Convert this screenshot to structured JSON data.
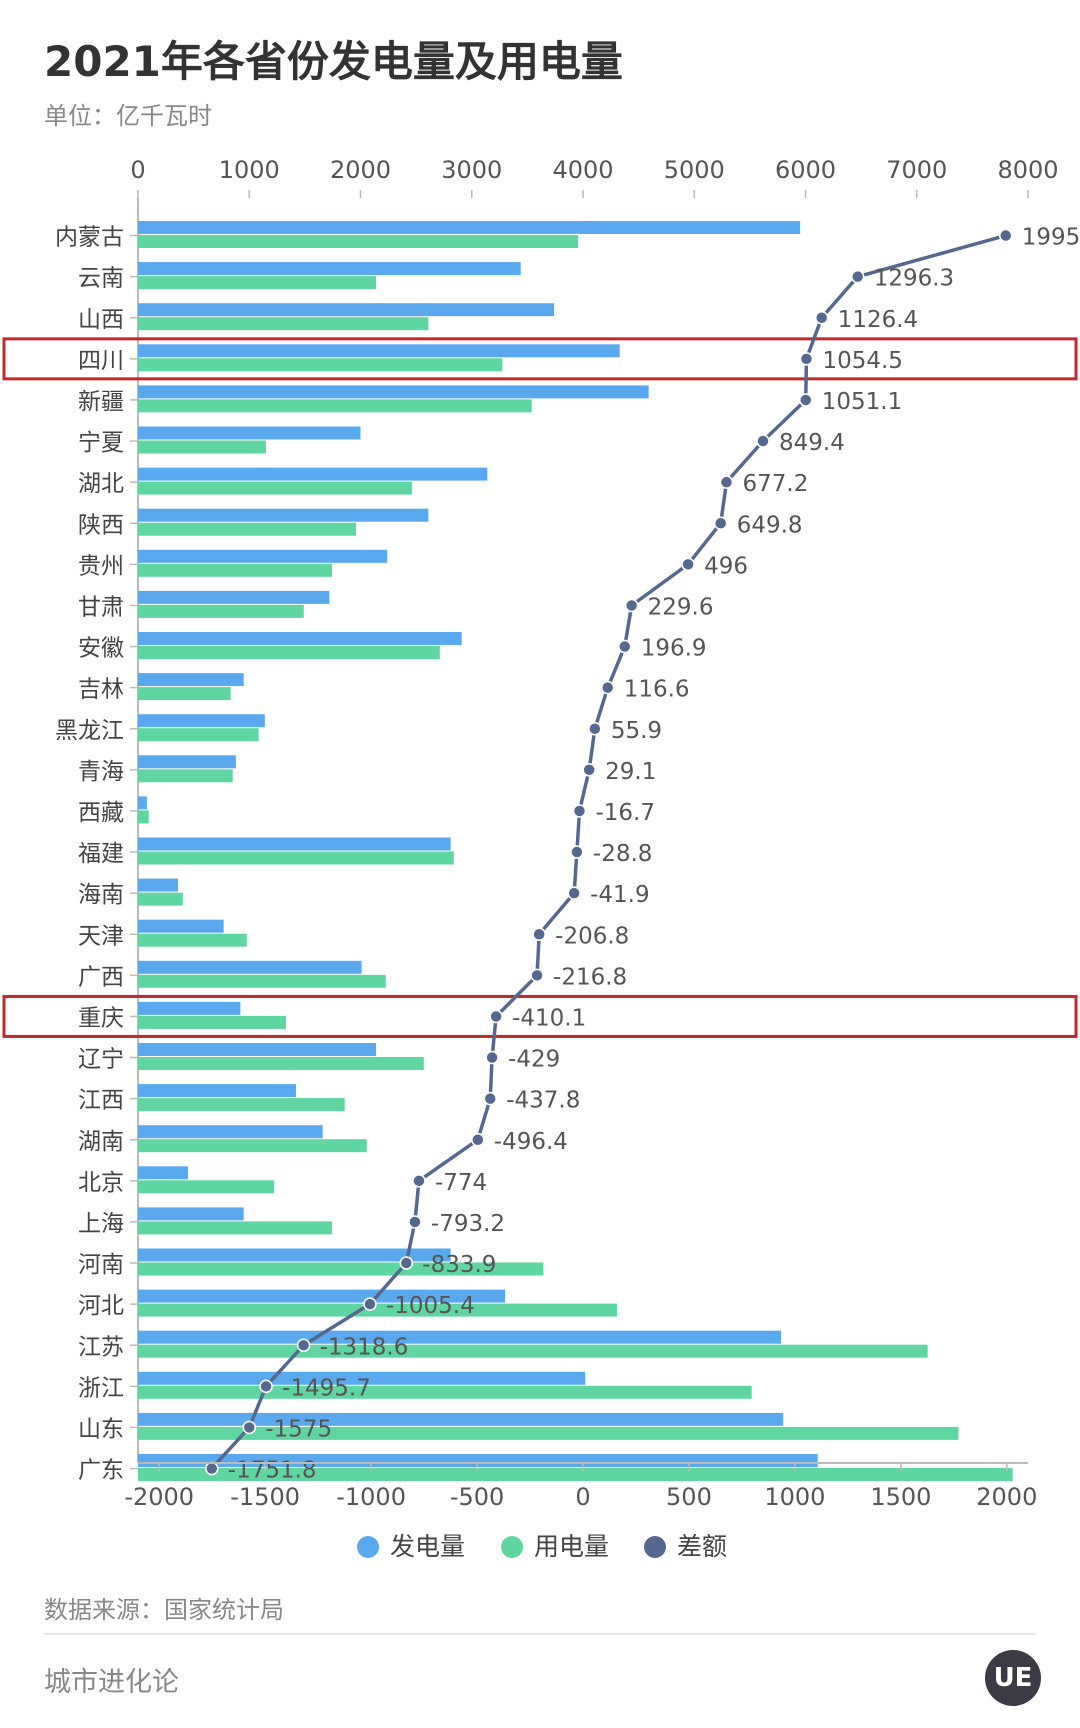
{
  "header": {
    "title": "2021年各省份发电量及用电量",
    "subtitle": "单位：亿千瓦时"
  },
  "footer": {
    "source": "数据来源：国家统计局",
    "brand": "城市进化论",
    "logo_text": "UE"
  },
  "colors": {
    "generation": "#5aa9ee",
    "consumption": "#5fd6a2",
    "difference": "#56688f",
    "highlight": "#c0282a"
  },
  "chart_data": {
    "type": "bar",
    "title": "2021年各省份发电量及用电量",
    "subtitle": "单位：亿千瓦时",
    "categories": [
      "内蒙古",
      "云南",
      "山西",
      "四川",
      "新疆",
      "宁夏",
      "湖北",
      "陕西",
      "贵州",
      "甘肃",
      "安徽",
      "吉林",
      "黑龙江",
      "青海",
      "西藏",
      "福建",
      "海南",
      "天津",
      "广西",
      "重庆",
      "辽宁",
      "江西",
      "湖南",
      "北京",
      "上海",
      "河南",
      "河北",
      "江苏",
      "浙江",
      "山东",
      "广东"
    ],
    "highlighted": [
      "四川",
      "重庆"
    ],
    "top_axis": {
      "range": [
        0,
        8000
      ],
      "ticks": [
        0,
        1000,
        2000,
        3000,
        4000,
        5000,
        6000,
        7000,
        8000
      ]
    },
    "bottom_axis": {
      "range": [
        -2100,
        2100
      ],
      "ticks": [
        -2000,
        -1500,
        -1000,
        -500,
        0,
        500,
        1000,
        1500,
        2000
      ]
    },
    "series": [
      {
        "name": "发电量",
        "axis": "top",
        "kind": "bar",
        "values": [
          5952,
          3440,
          3740,
          4330,
          4590,
          2000,
          3140,
          2610,
          2240,
          1720,
          2910,
          950,
          1140,
          880,
          80,
          2810,
          360,
          770,
          2010,
          920,
          2140,
          1420,
          1660,
          450,
          950,
          2810,
          3300,
          5780,
          4020,
          5800,
          6110
        ]
      },
      {
        "name": "用电量",
        "axis": "top",
        "kind": "bar",
        "values": [
          3956,
          2140,
          2610,
          3275,
          3539,
          1150,
          2462,
          1960,
          1744,
          1490,
          2713,
          833,
          1084,
          851,
          96,
          2839,
          402,
          977,
          2227,
          1330,
          2569,
          1858,
          2056,
          1224,
          1743,
          3644,
          4305,
          7098,
          5516,
          7375,
          7862
        ]
      },
      {
        "name": "差额",
        "axis": "bottom",
        "kind": "line",
        "values": [
          1995,
          1296.3,
          1126.4,
          1054.5,
          1051.1,
          849.4,
          677.2,
          649.8,
          496,
          229.6,
          196.9,
          116.6,
          55.9,
          29.1,
          -16.7,
          -28.8,
          -41.9,
          -206.8,
          -216.8,
          -410.1,
          -429,
          -437.8,
          -496.4,
          -774,
          -793.2,
          -833.9,
          -1005.4,
          -1318.6,
          -1495.7,
          -1575,
          -1751.8
        ],
        "labels": [
          "1995",
          "1296.3",
          "1126.4",
          "1054.5",
          "1051.1",
          "849.4",
          "677.2",
          "649.8",
          "496",
          "229.6",
          "196.9",
          "116.6",
          "55.9",
          "29.1",
          "-16.7",
          "-28.8",
          "-41.9",
          "-206.8",
          "-216.8",
          "-410.1",
          "-429",
          "-437.8",
          "-496.4",
          "-774",
          "-793.2",
          "-833.9",
          "-1005.4",
          "-1318.6",
          "-1495.7",
          "-1575",
          "-1751.8"
        ]
      }
    ],
    "legend_position": "bottom-center",
    "grid": false
  }
}
